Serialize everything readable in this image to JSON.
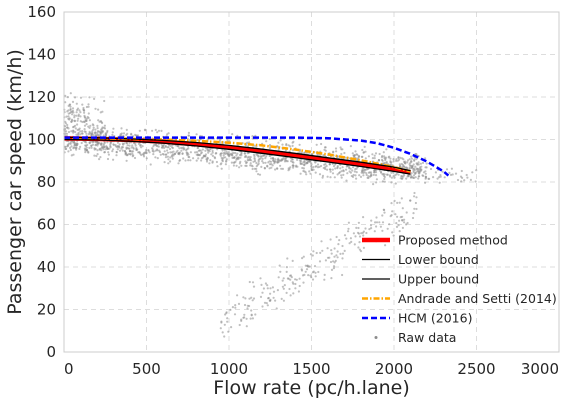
{
  "chart_data": {
    "type": "scatter",
    "title": "",
    "xlabel": "Flow rate (pc/h.lane)",
    "ylabel": "Passenger car speed (km/h)",
    "xlim": [
      0,
      3000
    ],
    "ylim": [
      0,
      160
    ],
    "xticks": [
      0,
      500,
      1000,
      1500,
      2000,
      2500,
      3000
    ],
    "yticks": [
      0,
      20,
      40,
      60,
      80,
      100,
      120,
      140,
      160
    ],
    "grid": true,
    "legend_position": "lower-right",
    "series": [
      {
        "name": "Proposed method",
        "kind": "line",
        "color": "#ff0000",
        "style": "solid",
        "x": [
          0,
          200,
          400,
          600,
          800,
          1000,
          1200,
          1400,
          1600,
          1800,
          2000,
          2100
        ],
        "y": [
          100.5,
          100.3,
          99.8,
          99.0,
          97.8,
          96.3,
          94.5,
          92.5,
          90.4,
          88.3,
          86.0,
          84.5
        ]
      },
      {
        "name": "Lower bound",
        "kind": "line",
        "color": "#000000",
        "style": "solid",
        "x": [
          0,
          200,
          400,
          600,
          800,
          1000,
          1200,
          1400,
          1600,
          1800,
          2000,
          2100
        ],
        "y": [
          100.0,
          99.8,
          99.2,
          98.3,
          97.0,
          95.4,
          93.5,
          91.5,
          89.4,
          87.3,
          85.0,
          83.7
        ]
      },
      {
        "name": "Upper bound",
        "kind": "line",
        "color": "#000000",
        "style": "solid",
        "x": [
          0,
          200,
          400,
          600,
          800,
          1000,
          1200,
          1400,
          1600,
          1800,
          2000,
          2100
        ],
        "y": [
          101.0,
          100.8,
          100.3,
          99.6,
          98.6,
          97.2,
          95.5,
          93.5,
          91.4,
          89.3,
          87.0,
          85.3
        ]
      },
      {
        "name": "Andrade and Setti (2014)",
        "kind": "line",
        "color": "#ffa500",
        "style": "dashdot",
        "x": [
          0,
          200,
          400,
          600,
          800,
          1000,
          1200,
          1400,
          1600,
          1800,
          2000,
          2100
        ],
        "y": [
          100.5,
          100.5,
          100.3,
          100.0,
          99.4,
          98.5,
          97.2,
          95.3,
          93.0,
          90.2,
          87.0,
          85.0
        ]
      },
      {
        "name": "HCM (2016)",
        "kind": "line",
        "color": "#0000ff",
        "style": "dashed",
        "x": [
          0,
          400,
          800,
          1200,
          1400,
          1600,
          1800,
          1900,
          2000,
          2100,
          2200,
          2300,
          2330
        ],
        "y": [
          100.9,
          100.9,
          100.9,
          100.9,
          100.9,
          100.6,
          99.5,
          98.2,
          96.1,
          93.2,
          89.6,
          85.0,
          83.0
        ]
      },
      {
        "name": "Raw data",
        "kind": "scatter",
        "color": "#8c8c8c",
        "clusters": [
          {
            "x_range": [
              0,
              2200
            ],
            "y_center": [
              100,
              86
            ],
            "y_spread": 11
          },
          {
            "x_range": [
              0,
              250
            ],
            "y_center": [
              110,
              104
            ],
            "y_spread": 18
          },
          {
            "x_range": [
              950,
              2150
            ],
            "y_center": [
              15,
              70
            ],
            "y_spread": 15
          },
          {
            "x_range": [
              1400,
              2500
            ],
            "y_center": [
              88,
              82
            ],
            "y_spread": 6
          }
        ]
      }
    ]
  }
}
